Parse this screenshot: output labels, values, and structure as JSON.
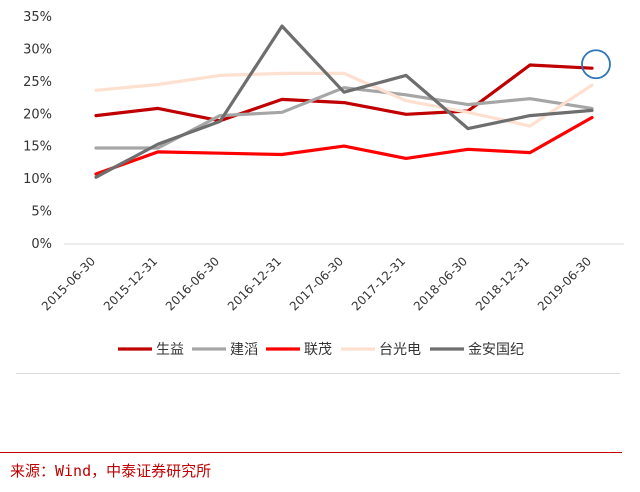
{
  "chart_data": {
    "type": "line",
    "title": "",
    "xlabel": "",
    "ylabel": "",
    "ylim": [
      0,
      35
    ],
    "y_ticks": [
      "0%",
      "5%",
      "10%",
      "15%",
      "20%",
      "25%",
      "30%",
      "35%"
    ],
    "y_unit": "%",
    "categories": [
      "2015-06-30",
      "2015-12-31",
      "2016-06-30",
      "2016-12-31",
      "2017-06-30",
      "2017-12-31",
      "2018-06-30",
      "2018-12-31",
      "2019-06-30"
    ],
    "legend_position": "bottom",
    "grid": false,
    "highlight": {
      "series": "生益",
      "category": "2019-06-30",
      "color": "#2e75b6"
    },
    "series": [
      {
        "name": "生益",
        "color": "#c00000",
        "values": [
          19.8,
          20.9,
          19.0,
          22.3,
          21.8,
          20.0,
          20.5,
          27.6,
          27.1
        ]
      },
      {
        "name": "建滔",
        "color": "#a6a6a6",
        "values": [
          14.8,
          14.8,
          19.8,
          20.3,
          24.1,
          23.0,
          21.5,
          22.4,
          20.9
        ]
      },
      {
        "name": "联茂",
        "color": "#ff0000",
        "values": [
          10.8,
          14.2,
          14.0,
          13.8,
          15.1,
          13.2,
          14.6,
          14.1,
          19.5
        ]
      },
      {
        "name": "台光电",
        "color": "#fde0d0",
        "values": [
          23.7,
          24.6,
          26.0,
          26.3,
          26.3,
          22.1,
          20.3,
          18.2,
          24.5
        ]
      },
      {
        "name": "金安国纪",
        "color": "#6e6e6e",
        "values": [
          10.3,
          15.4,
          18.9,
          33.6,
          23.4,
          26.0,
          17.8,
          19.8,
          20.6
        ]
      }
    ]
  },
  "source": {
    "text": "来源：Wind，中泰证券研究所"
  }
}
